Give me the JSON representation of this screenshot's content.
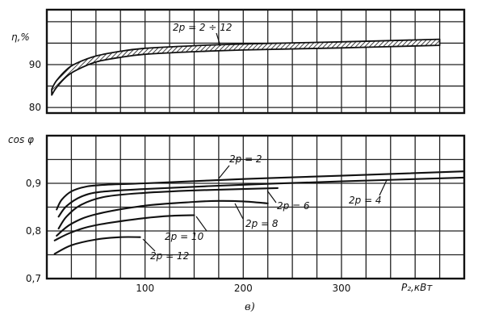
{
  "chart_data": [
    {
      "type": "area",
      "ylabel": "η,%",
      "xlim": [
        0,
        425
      ],
      "ylim": [
        78.7,
        102.8
      ],
      "yticks": [
        {
          "value": 90,
          "label": "90"
        },
        {
          "value": 80,
          "label": "80"
        }
      ],
      "grid": true,
      "series": [
        {
          "name": "2p = 2 ÷ 12",
          "x": [
            5,
            10,
            20,
            30,
            50,
            75,
            100,
            150,
            200,
            300,
            400
          ],
          "upper": [
            84.3,
            86.3,
            88.8,
            90.3,
            92.0,
            93.1,
            93.8,
            94.4,
            94.8,
            95.3,
            95.9
          ],
          "lower": [
            82.9,
            84.7,
            87.2,
            88.7,
            90.6,
            91.7,
            92.4,
            93.0,
            93.4,
            93.9,
            94.5
          ]
        }
      ]
    },
    {
      "type": "line",
      "ylabel": "cos φ",
      "xlabel": "P₂,кВт",
      "xlim": [
        0,
        425
      ],
      "ylim": [
        0.7,
        1.0
      ],
      "xticks": [
        {
          "value": 100,
          "label": "100"
        },
        {
          "value": 200,
          "label": "200"
        },
        {
          "value": 300,
          "label": "300"
        }
      ],
      "yticks": [
        {
          "value": 0.9,
          "label": "0,9"
        },
        {
          "value": 0.8,
          "label": "0,8"
        },
        {
          "value": 0.7,
          "label": "0,7"
        }
      ],
      "grid": true,
      "series": [
        {
          "name": "2p = 2",
          "x": [
            10,
            15,
            25,
            40,
            60,
            100,
            200,
            300,
            425
          ],
          "y": [
            0.845,
            0.865,
            0.883,
            0.893,
            0.897,
            0.9,
            0.909,
            0.916,
            0.925
          ]
        },
        {
          "name": "2p = 4",
          "x": [
            12,
            20,
            35,
            55,
            100,
            200,
            300,
            425
          ],
          "y": [
            0.83,
            0.852,
            0.872,
            0.882,
            0.888,
            0.897,
            0.904,
            0.912
          ]
        },
        {
          "name": "2p = 6",
          "x": [
            12,
            20,
            35,
            60,
            100,
            150,
            200,
            235
          ],
          "y": [
            0.805,
            0.83,
            0.855,
            0.872,
            0.88,
            0.885,
            0.888,
            0.89
          ]
        },
        {
          "name": "2p = 8",
          "x": [
            10,
            25,
            50,
            100,
            150,
            175,
            200,
            225
          ],
          "y": [
            0.79,
            0.815,
            0.835,
            0.853,
            0.861,
            0.863,
            0.862,
            0.858
          ]
        },
        {
          "name": "2p = 10",
          "x": [
            8,
            25,
            50,
            100,
            130,
            150
          ],
          "y": [
            0.78,
            0.797,
            0.812,
            0.827,
            0.832,
            0.833
          ]
        },
        {
          "name": "2p = 12",
          "x": [
            8,
            25,
            50,
            75,
            95
          ],
          "y": [
            0.752,
            0.77,
            0.782,
            0.787,
            0.787
          ]
        }
      ]
    }
  ],
  "caption": "в)"
}
